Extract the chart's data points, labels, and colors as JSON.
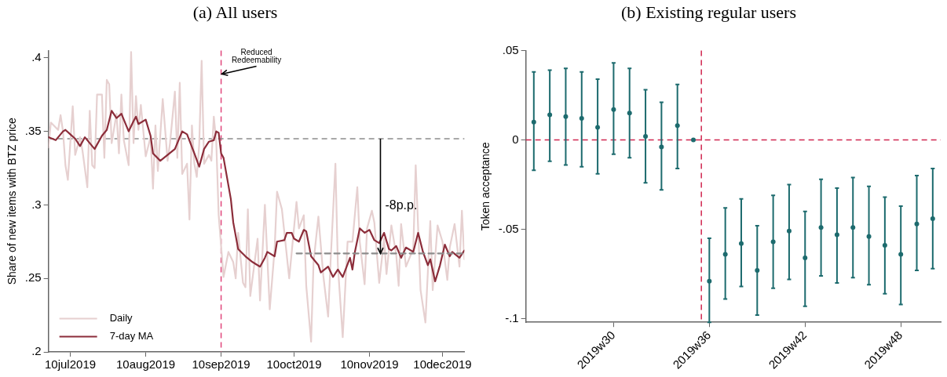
{
  "chart_data": [
    {
      "type": "line",
      "title": "(a) All users",
      "ylabel": "Share of new items with BTZ price",
      "xlim": [
        "2019-07-01",
        "2019-12-19"
      ],
      "xticks": [
        {
          "value": "2019-07-10",
          "label": "10jul2019"
        },
        {
          "value": "2019-08-10",
          "label": "10aug2019"
        },
        {
          "value": "2019-09-10",
          "label": "10sep2019"
        },
        {
          "value": "2019-10-10",
          "label": "10oct2019"
        },
        {
          "value": "2019-11-10",
          "label": "10nov2019"
        },
        {
          "value": "2019-12-10",
          "label": "10dec2019"
        }
      ],
      "ylim": [
        0.2,
        0.405
      ],
      "yticks": [
        {
          "value": 0.2,
          "label": ".2"
        },
        {
          "value": 0.25,
          "label": ".25"
        },
        {
          "value": 0.3,
          "label": ".3"
        },
        {
          "value": 0.35,
          "label": ".35"
        },
        {
          "value": 0.4,
          "label": ".4"
        }
      ],
      "legend": "bottom left",
      "ref_lines": [
        {
          "axis": "x",
          "value": "2019-09-10",
          "color": "#e0457b",
          "line_style": "dashed"
        },
        {
          "axis": "y",
          "value": 0.345,
          "color": "#8c8c8c",
          "line_style": "dashed"
        }
      ],
      "annotations": [
        {
          "text": "Reduced Redeemability",
          "x": "2019-09-10",
          "y": 0.389
        },
        "-8p.p."
      ],
      "series": [
        {
          "name": "Daily",
          "color": "#e6d0d0",
          "x": [
            "2019-07-01",
            "2019-07-02",
            "2019-07-05",
            "2019-07-06",
            "2019-07-07",
            "2019-07-08",
            "2019-07-09",
            "2019-07-11",
            "2019-07-12",
            "2019-07-14",
            "2019-07-15",
            "2019-07-17",
            "2019-07-18",
            "2019-07-19",
            "2019-07-20",
            "2019-07-21",
            "2019-07-23",
            "2019-07-24",
            "2019-07-25",
            "2019-07-26",
            "2019-07-27",
            "2019-07-29",
            "2019-07-30",
            "2019-07-31",
            "2019-08-01",
            "2019-08-03",
            "2019-08-04",
            "2019-08-05",
            "2019-08-06",
            "2019-08-07",
            "2019-08-08",
            "2019-08-10",
            "2019-08-12",
            "2019-08-13",
            "2019-08-14",
            "2019-08-15",
            "2019-08-17",
            "2019-08-19",
            "2019-08-20",
            "2019-08-22",
            "2019-08-23",
            "2019-08-24",
            "2019-08-25",
            "2019-08-27",
            "2019-08-28",
            "2019-08-29",
            "2019-08-30",
            "2019-08-31",
            "2019-09-01",
            "2019-09-02",
            "2019-09-03",
            "2019-09-05",
            "2019-09-06",
            "2019-09-07",
            "2019-09-08",
            "2019-09-09",
            "2019-09-11",
            "2019-09-13",
            "2019-09-15",
            "2019-09-16",
            "2019-09-17",
            "2019-09-19",
            "2019-09-20",
            "2019-09-21",
            "2019-09-22",
            "2019-09-25",
            "2019-09-26",
            "2019-09-28",
            "2019-09-30",
            "2019-10-02",
            "2019-10-03",
            "2019-10-05",
            "2019-10-08",
            "2019-10-11",
            "2019-10-12",
            "2019-10-14",
            "2019-10-15",
            "2019-10-17",
            "2019-10-18",
            "2019-10-20",
            "2019-10-22",
            "2019-10-24",
            "2019-10-25",
            "2019-10-27",
            "2019-10-28",
            "2019-10-30",
            "2019-11-01",
            "2019-11-03",
            "2019-11-05",
            "2019-11-06",
            "2019-11-08",
            "2019-11-09",
            "2019-11-11",
            "2019-11-12",
            "2019-11-14",
            "2019-11-16",
            "2019-11-17",
            "2019-11-19",
            "2019-11-21",
            "2019-11-22",
            "2019-11-23",
            "2019-11-25",
            "2019-11-28",
            "2019-11-29",
            "2019-12-01",
            "2019-12-03",
            "2019-12-05",
            "2019-12-06",
            "2019-12-08",
            "2019-12-10",
            "2019-12-12",
            "2019-12-13",
            "2019-12-15",
            "2019-12-17",
            "2019-12-18",
            "2019-12-19"
          ],
          "values": [
            0.339,
            0.356,
            0.351,
            0.361,
            0.35,
            0.327,
            0.317,
            0.367,
            0.334,
            0.346,
            0.337,
            0.312,
            0.364,
            0.327,
            0.325,
            0.375,
            0.375,
            0.332,
            0.385,
            0.382,
            0.342,
            0.362,
            0.335,
            0.375,
            0.344,
            0.327,
            0.404,
            0.342,
            0.374,
            0.351,
            0.368,
            0.333,
            0.346,
            0.311,
            0.354,
            0.323,
            0.372,
            0.33,
            0.342,
            0.377,
            0.332,
            0.383,
            0.321,
            0.328,
            0.29,
            0.354,
            0.328,
            0.319,
            0.341,
            0.398,
            0.328,
            0.334,
            0.33,
            0.36,
            0.343,
            0.293,
            0.251,
            0.268,
            0.261,
            0.25,
            0.281,
            0.247,
            0.244,
            0.297,
            0.238,
            0.277,
            0.235,
            0.3,
            0.229,
            0.27,
            0.309,
            0.297,
            0.25,
            0.302,
            0.284,
            0.293,
            0.245,
            0.207,
            0.261,
            0.292,
            0.252,
            0.224,
            0.261,
            0.328,
            0.259,
            0.21,
            0.275,
            0.275,
            0.312,
            0.275,
            0.246,
            0.284,
            0.296,
            0.288,
            0.247,
            0.277,
            0.253,
            0.286,
            0.266,
            0.245,
            0.287,
            0.258,
            0.27,
            0.327,
            0.242,
            0.22,
            0.289,
            0.242,
            0.286,
            0.275,
            0.249,
            0.271,
            0.287,
            0.258,
            0.296,
            0.263
          ]
        },
        {
          "name": "7-day MA",
          "color": "#8c2d3a",
          "x": [
            "2019-07-01",
            "2019-07-04",
            "2019-07-07",
            "2019-07-08",
            "2019-07-10",
            "2019-07-12",
            "2019-07-14",
            "2019-07-16",
            "2019-07-18",
            "2019-07-20",
            "2019-07-23",
            "2019-07-25",
            "2019-07-27",
            "2019-07-29",
            "2019-07-31",
            "2019-08-03",
            "2019-08-05",
            "2019-08-06",
            "2019-08-07",
            "2019-08-10",
            "2019-08-12",
            "2019-08-13",
            "2019-08-16",
            "2019-08-19",
            "2019-08-22",
            "2019-08-25",
            "2019-08-27",
            "2019-08-30",
            "2019-09-01",
            "2019-09-03",
            "2019-09-05",
            "2019-09-07",
            "2019-09-08",
            "2019-09-09",
            "2019-09-10",
            "2019-09-11",
            "2019-09-14",
            "2019-09-15",
            "2019-09-17",
            "2019-09-20",
            "2019-09-23",
            "2019-09-26",
            "2019-09-28",
            "2019-09-29",
            "2019-10-02",
            "2019-10-03",
            "2019-10-06",
            "2019-10-07",
            "2019-10-09",
            "2019-10-10",
            "2019-10-12",
            "2019-10-14",
            "2019-10-15",
            "2019-10-17",
            "2019-10-20",
            "2019-10-21",
            "2019-10-24",
            "2019-10-26",
            "2019-10-28",
            "2019-10-30",
            "2019-11-02",
            "2019-11-03",
            "2019-11-04",
            "2019-11-06",
            "2019-11-08",
            "2019-11-09",
            "2019-11-10",
            "2019-11-12",
            "2019-11-14",
            "2019-11-16",
            "2019-11-18",
            "2019-11-19",
            "2019-11-21",
            "2019-11-23",
            "2019-11-25",
            "2019-11-28",
            "2019-11-30",
            "2019-12-02",
            "2019-12-04",
            "2019-12-05",
            "2019-12-07",
            "2019-12-09",
            "2019-12-11",
            "2019-12-13",
            "2019-12-14",
            "2019-12-17",
            "2019-12-19"
          ],
          "values": [
            0.346,
            0.344,
            0.35,
            0.351,
            0.348,
            0.345,
            0.34,
            0.346,
            0.342,
            0.338,
            0.347,
            0.351,
            0.364,
            0.359,
            0.362,
            0.35,
            0.357,
            0.36,
            0.355,
            0.358,
            0.347,
            0.335,
            0.33,
            0.334,
            0.338,
            0.35,
            0.348,
            0.335,
            0.326,
            0.338,
            0.343,
            0.344,
            0.35,
            0.349,
            0.335,
            0.332,
            0.304,
            0.288,
            0.27,
            0.265,
            0.261,
            0.258,
            0.264,
            0.268,
            0.265,
            0.275,
            0.276,
            0.281,
            0.281,
            0.277,
            0.275,
            0.283,
            0.282,
            0.265,
            0.259,
            0.254,
            0.258,
            0.251,
            0.256,
            0.251,
            0.264,
            0.256,
            0.268,
            0.284,
            0.281,
            0.282,
            0.283,
            0.276,
            0.274,
            0.281,
            0.27,
            0.269,
            0.272,
            0.264,
            0.271,
            0.268,
            0.281,
            0.268,
            0.259,
            0.263,
            0.248,
            0.259,
            0.273,
            0.265,
            0.268,
            0.264,
            0.269
          ]
        },
        {
          "color": "#8c8c8c",
          "line_style": "dashed",
          "x": [
            "2019-10-11",
            "2019-12-19"
          ],
          "values": [
            0.267,
            0.267
          ]
        }
      ]
    },
    {
      "type": "scatter",
      "title": "(b) Existing regular users",
      "ylabel": "Token acceptance",
      "marker": "circle",
      "categories": [
        null,
        null,
        null,
        null,
        null,
        "2019w30",
        null,
        null,
        null,
        null,
        null,
        "2019w36",
        null,
        null,
        null,
        null,
        null,
        "2019w42",
        null,
        null,
        null,
        null,
        null,
        "2019w48",
        null,
        null
      ],
      "ylim": [
        -0.102,
        0.05
      ],
      "yticks": [
        {
          "value": -0.1,
          "label": "-.1"
        },
        {
          "value": -0.05,
          "label": "-.05"
        },
        0,
        {
          "value": 0.05,
          "label": ".05"
        }
      ],
      "ref_lines": [
        {
          "axis": "y",
          "value": 0,
          "color": "#d0264f",
          "line_style": "dashed"
        }
      ],
      "series": [
        {
          "color": "#1d6b6e",
          "values": [
            0.01,
            0.014,
            0.013,
            0.012,
            0.007,
            0.017,
            0.015,
            0.002,
            -0.004,
            0.008,
            0,
            -0.079,
            -0.064,
            -0.058,
            -0.073,
            -0.057,
            -0.051,
            -0.066,
            -0.049,
            -0.053,
            -0.049,
            -0.054,
            -0.059,
            -0.064,
            -0.047,
            -0.044
          ],
          "errors": [
            [
              -0.017,
              0.038
            ],
            [
              -0.012,
              0.039
            ],
            [
              -0.014,
              0.04
            ],
            [
              -0.015,
              0.038
            ],
            [
              -0.019,
              0.034
            ],
            [
              -0.008,
              0.043
            ],
            [
              -0.01,
              0.04
            ],
            [
              -0.024,
              0.028
            ],
            [
              -0.028,
              0.021
            ],
            [
              -0.016,
              0.031
            ],
            null,
            [
              -0.102,
              -0.055
            ],
            [
              -0.089,
              -0.038
            ],
            [
              -0.082,
              -0.033
            ],
            [
              -0.098,
              -0.048
            ],
            [
              -0.083,
              -0.031
            ],
            [
              -0.078,
              -0.025
            ],
            [
              -0.093,
              -0.04
            ],
            [
              -0.076,
              -0.022
            ],
            [
              -0.08,
              -0.027
            ],
            [
              -0.077,
              -0.021
            ],
            [
              -0.081,
              -0.026
            ],
            [
              -0.086,
              -0.032
            ],
            [
              -0.092,
              -0.037
            ],
            [
              -0.073,
              -0.02
            ],
            [
              -0.072,
              -0.016
            ]
          ]
        }
      ]
    }
  ]
}
